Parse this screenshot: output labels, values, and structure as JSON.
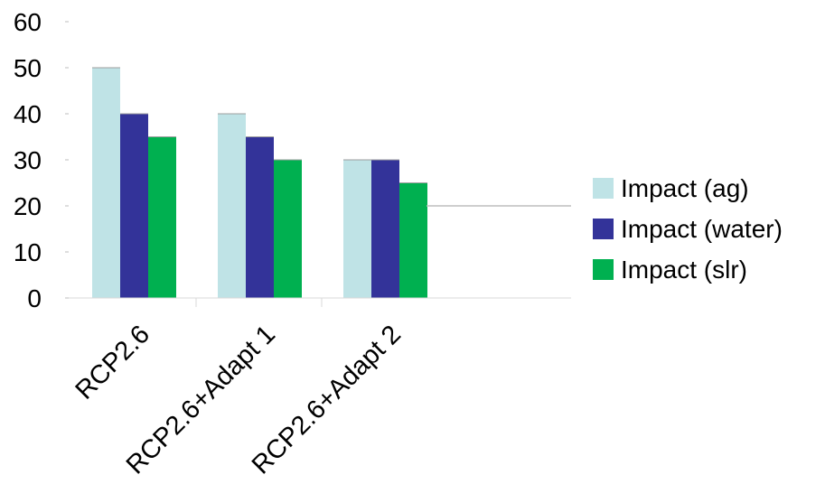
{
  "chart_data": {
    "type": "bar",
    "title": "",
    "xlabel": "",
    "ylabel": "",
    "categories": [
      "RCP2.6",
      "RCP2.6+Adapt 1",
      "RCP2.6+Adapt 2"
    ],
    "series": [
      {
        "name": "Impact (ag)",
        "values": [
          50,
          40,
          30
        ],
        "color": "#bfe3e6"
      },
      {
        "name": "Impact (water)",
        "values": [
          40,
          35,
          30
        ],
        "color": "#333399"
      },
      {
        "name": "Impact (slr)",
        "values": [
          35,
          30,
          25
        ],
        "color": "#00b050"
      }
    ],
    "ylim": [
      0,
      60
    ],
    "yticks": [
      0,
      10,
      20,
      30,
      40,
      50,
      60
    ],
    "grid": false,
    "legend_position": "right",
    "category_label_rotation": -45
  }
}
